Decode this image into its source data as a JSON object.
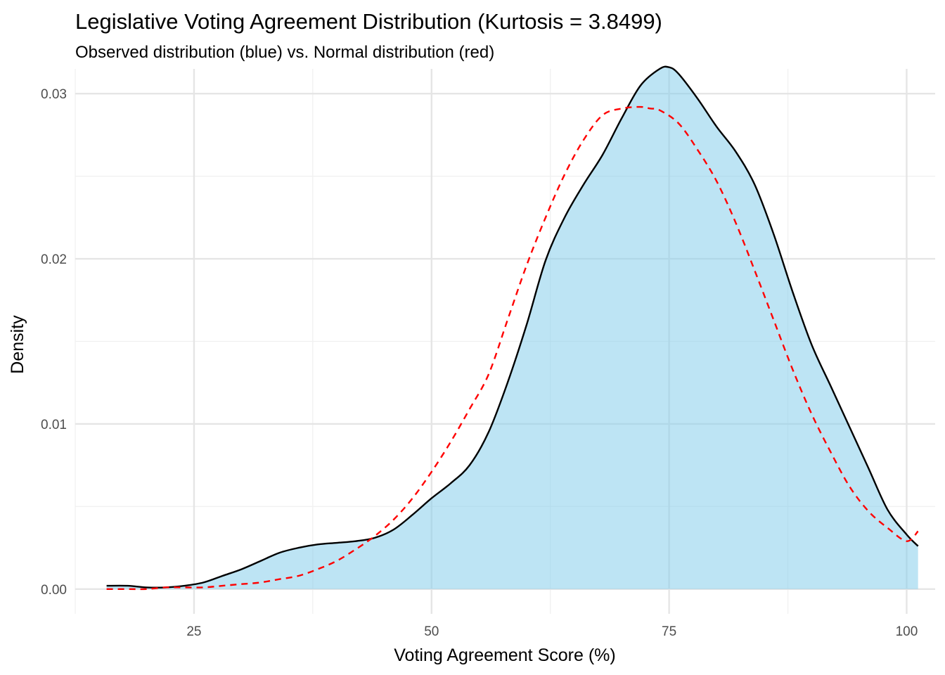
{
  "chart_data": {
    "type": "area",
    "title": "Legislative Voting Agreement Distribution (Kurtosis = 3.8499)",
    "subtitle": "Observed distribution (blue) vs. Normal distribution (red)",
    "xlabel": "Voting Agreement Score (%)",
    "ylabel": "Density",
    "xlim": [
      12.5,
      103
    ],
    "ylim": [
      -0.0015,
      0.0315
    ],
    "x_ticks": [
      25,
      50,
      75,
      100
    ],
    "x_tick_labels": [
      "25",
      "50",
      "75",
      "100"
    ],
    "y_ticks": [
      0.0,
      0.01,
      0.02,
      0.03
    ],
    "y_tick_labels": [
      "0.00",
      "0.01",
      "0.02",
      "0.03"
    ],
    "grid": true,
    "colors": {
      "observed_fill": "#87ceeb",
      "observed_line": "#000000",
      "normal_line": "#ff0000"
    },
    "series": [
      {
        "style": "filled-density",
        "x": [
          15.8,
          18,
          20,
          22,
          24,
          26,
          28,
          30,
          32,
          34,
          36,
          38,
          40,
          42,
          44,
          46,
          48,
          50,
          52,
          54,
          56,
          58,
          60,
          62,
          64,
          66,
          68,
          70,
          72,
          74,
          75,
          76,
          78,
          80,
          82,
          84,
          86,
          88,
          90,
          92,
          94,
          96,
          98,
          100,
          101.2
        ],
        "values": [
          0.0002,
          0.0002,
          0.0001,
          0.0001,
          0.0002,
          0.0004,
          0.0008,
          0.0012,
          0.0017,
          0.0022,
          0.0025,
          0.0027,
          0.0028,
          0.0029,
          0.0031,
          0.0036,
          0.0045,
          0.0055,
          0.0064,
          0.0075,
          0.0095,
          0.0125,
          0.016,
          0.0199,
          0.0225,
          0.0245,
          0.0263,
          0.0285,
          0.0305,
          0.0315,
          0.0316,
          0.0312,
          0.0297,
          0.028,
          0.0265,
          0.0245,
          0.0215,
          0.018,
          0.0148,
          0.0123,
          0.0098,
          0.0073,
          0.0048,
          0.0033,
          0.0026
        ]
      },
      {
        "style": "dashed-line",
        "x": [
          15.8,
          18,
          20,
          22,
          24,
          26,
          28,
          30,
          32,
          34,
          36,
          38,
          40,
          42,
          44,
          46,
          48,
          50,
          52,
          54,
          56,
          58,
          60,
          62,
          64,
          66,
          68,
          70,
          72,
          73,
          74,
          76,
          78,
          80,
          82,
          84,
          86,
          88,
          90,
          92,
          94,
          96,
          98,
          100,
          101.2
        ],
        "values": [
          0.0,
          0.0,
          0.0,
          0.0001,
          0.0001,
          0.0001,
          0.0002,
          0.0003,
          0.0004,
          0.0006,
          0.0008,
          0.0012,
          0.0017,
          0.0024,
          0.0032,
          0.0042,
          0.0055,
          0.0071,
          0.0089,
          0.0109,
          0.013,
          0.0163,
          0.0196,
          0.0225,
          0.0251,
          0.0272,
          0.0287,
          0.0291,
          0.0292,
          0.0291,
          0.029,
          0.0282,
          0.0266,
          0.0247,
          0.0222,
          0.0193,
          0.0163,
          0.0133,
          0.0106,
          0.0083,
          0.0062,
          0.0047,
          0.0037,
          0.0029,
          0.0035
        ]
      }
    ]
  }
}
